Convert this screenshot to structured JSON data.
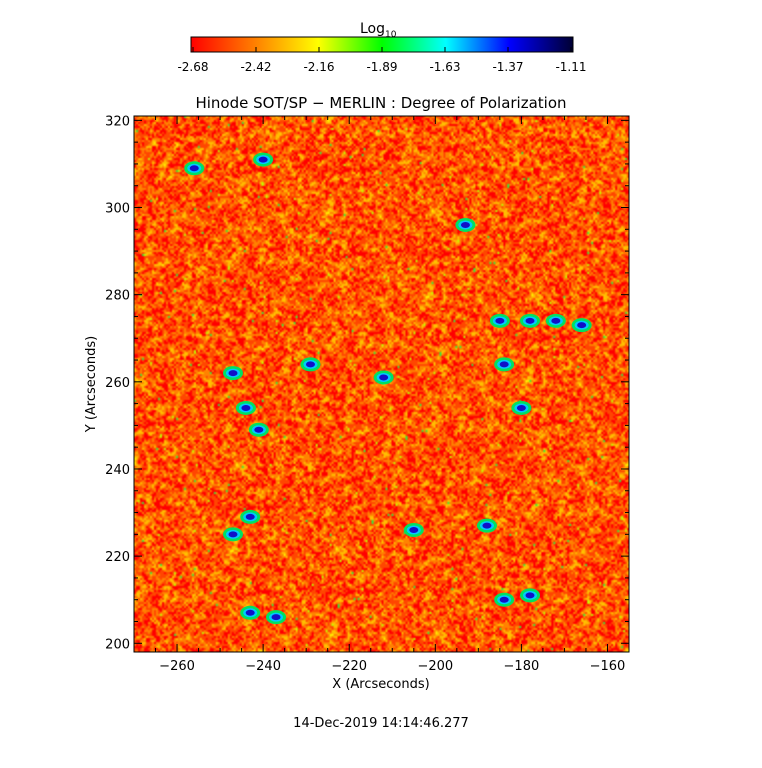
{
  "colorbar": {
    "label": "Log",
    "label_sub": "10",
    "ticks": [
      "-2.68",
      "-2.42",
      "-2.16",
      "-1.89",
      "-1.63",
      "-1.37",
      "-1.11"
    ],
    "range": [
      -2.68,
      -1.11
    ],
    "colormap": [
      "#ff0000",
      "#ff7f00",
      "#ffff00",
      "#00ff00",
      "#00ffff",
      "#0000ff",
      "#000033"
    ]
  },
  "chart_data": {
    "type": "heatmap",
    "title": "Hinode SOT/SP − MERLIN : Degree of Polarization",
    "xlabel": "X (Arcseconds)",
    "ylabel": "Y (Arcseconds)",
    "xlim": [
      -270,
      -155
    ],
    "ylim": [
      198,
      321
    ],
    "xticks": [
      -260,
      -240,
      -220,
      -200,
      -180,
      -160
    ],
    "xtick_labels": [
      "−260",
      "−240",
      "−220",
      "−200",
      "−180",
      "−160"
    ],
    "yticks": [
      200,
      220,
      240,
      260,
      280,
      300,
      320
    ],
    "ytick_labels": [
      "200",
      "220",
      "240",
      "260",
      "280",
      "300",
      "320"
    ],
    "value_scale": "log10",
    "dominant_level": "red-orange (about -2.6 to -2.5)",
    "strong_features": [
      {
        "x": -256,
        "y": 309
      },
      {
        "x": -240,
        "y": 311
      },
      {
        "x": -193,
        "y": 296
      },
      {
        "x": -185,
        "y": 274
      },
      {
        "x": -178,
        "y": 274
      },
      {
        "x": -172,
        "y": 274
      },
      {
        "x": -166,
        "y": 273
      },
      {
        "x": -184,
        "y": 264
      },
      {
        "x": -212,
        "y": 261
      },
      {
        "x": -229,
        "y": 264
      },
      {
        "x": -247,
        "y": 262
      },
      {
        "x": -244,
        "y": 254
      },
      {
        "x": -241,
        "y": 249
      },
      {
        "x": -180,
        "y": 254
      },
      {
        "x": -205,
        "y": 226
      },
      {
        "x": -243,
        "y": 229
      },
      {
        "x": -247,
        "y": 225
      },
      {
        "x": -184,
        "y": 210
      },
      {
        "x": -178,
        "y": 211
      },
      {
        "x": -243,
        "y": 207
      },
      {
        "x": -237,
        "y": 206
      },
      {
        "x": -188,
        "y": 227
      }
    ]
  },
  "timestamp": "14-Dec-2019 14:14:46.277"
}
